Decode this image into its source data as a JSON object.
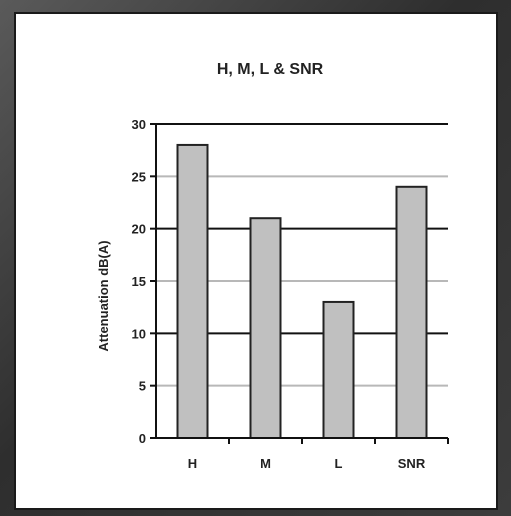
{
  "chart_data": {
    "type": "bar",
    "title": "H, M, L & SNR",
    "xlabel": "",
    "ylabel": "Attenuation dB(A)",
    "categories": [
      "H",
      "M",
      "L",
      "SNR"
    ],
    "values": [
      28,
      21,
      13,
      24
    ],
    "ylim": [
      0,
      30
    ],
    "yticks": [
      "0",
      "5",
      "10",
      "15",
      "20",
      "25",
      "30"
    ],
    "grid": true,
    "legend": "none",
    "colors": {
      "bar_fill": "#c0c0c0",
      "bar_stroke": "#222222",
      "grid_dark": "#111111",
      "grid_light": "#b8b8b8"
    }
  }
}
